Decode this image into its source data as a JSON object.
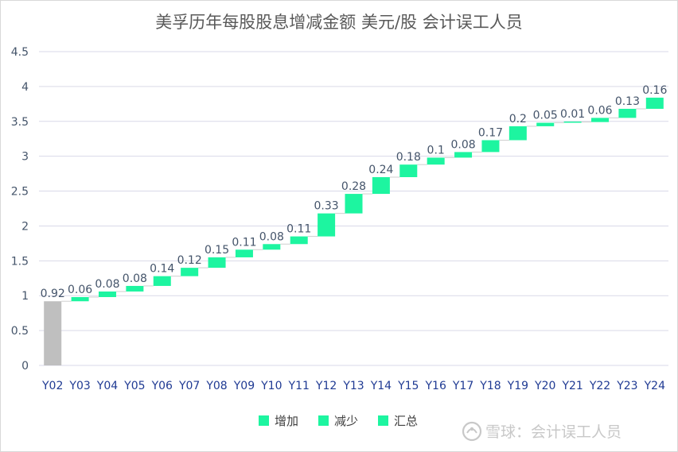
{
  "chart_data": {
    "type": "bar",
    "subtype": "waterfall",
    "title": "美孚历年每股股息增减金额 美元/股 会计误工人员",
    "categories": [
      "Y02",
      "Y03",
      "Y04",
      "Y05",
      "Y06",
      "Y07",
      "Y08",
      "Y09",
      "Y10",
      "Y11",
      "Y12",
      "Y13",
      "Y14",
      "Y15",
      "Y16",
      "Y17",
      "Y18",
      "Y19",
      "Y20",
      "Y21",
      "Y22",
      "Y23",
      "Y24"
    ],
    "values": [
      0.92,
      0.06,
      0.08,
      0.08,
      0.14,
      0.12,
      0.15,
      0.11,
      0.08,
      0.11,
      0.33,
      0.28,
      0.24,
      0.18,
      0.1,
      0.08,
      0.17,
      0.2,
      0.05,
      0.01,
      0.06,
      0.13,
      0.16
    ],
    "data_labels": [
      "0.92",
      "0.06",
      "0.08",
      "0.08",
      "0.14",
      "0.12",
      "0.15",
      "0.11",
      "0.08",
      "0.11",
      "0.33",
      "0.28",
      "0.24",
      "0.18",
      "0.1",
      "0.08",
      "0.17",
      "0.2",
      "0.05",
      "0.01",
      "0.06",
      "0.13",
      "0.16"
    ],
    "ylim": [
      0,
      4.5
    ],
    "yticks": [
      0,
      0.5,
      1,
      1.5,
      2,
      2.5,
      3,
      3.5,
      4,
      4.5
    ],
    "ytick_labels": [
      "0",
      "0.5",
      "1",
      "1.5",
      "2",
      "2.5",
      "3",
      "3.5",
      "4",
      "4.5"
    ],
    "grid": true,
    "legend": {
      "position": "bottom",
      "items": [
        {
          "label": "增加",
          "color": "#1df5a0"
        },
        {
          "label": "减少",
          "color": "#1df5a0"
        },
        {
          "label": "汇总",
          "color": "#1df5a0"
        }
      ]
    },
    "colors": {
      "increase": "#1df5a0",
      "start": "#bfbfbf",
      "grid": "#d9d9e8"
    }
  },
  "watermark": {
    "text": "雪球：会计误工人员",
    "icon": "snowball-logo-icon"
  }
}
